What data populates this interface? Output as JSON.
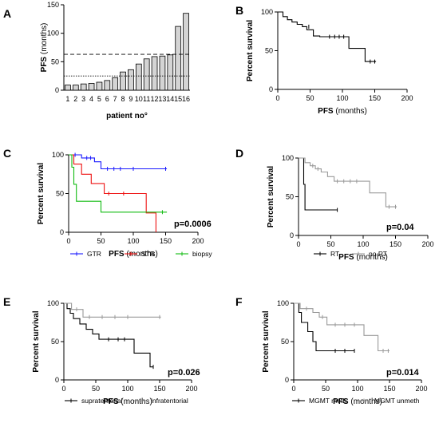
{
  "chart_data": [
    {
      "panel": "A",
      "type": "bar",
      "ylabel": "PFS",
      "ylabel_unit": "(months)",
      "xlabel": "patient no°",
      "ylim": [
        0,
        150
      ],
      "yticks": [
        0,
        50,
        100,
        150
      ],
      "categories": [
        "1",
        "2",
        "3",
        "4",
        "5",
        "6",
        "7",
        "8",
        "9",
        "10",
        "11",
        "12",
        "13",
        "14",
        "15",
        "16"
      ],
      "values": [
        9,
        9,
        11,
        12,
        14,
        17,
        22,
        32,
        36,
        46,
        55,
        59,
        60,
        62,
        112,
        135
      ],
      "reference_lines": [
        {
          "style": "dashed",
          "y": 63
        },
        {
          "style": "dotted",
          "y": 25
        }
      ],
      "bar_color": "#d4d4d4"
    },
    {
      "panel": "B",
      "type": "line",
      "xlabel_bold": "PFS",
      "xlabel_rest": "(months)",
      "ylabel": "Percent survival",
      "xlim": [
        0,
        200
      ],
      "ylim": [
        0,
        100
      ],
      "xticks": [
        0,
        50,
        100,
        150,
        200
      ],
      "yticks": [
        0,
        50,
        100
      ],
      "series": [
        {
          "color": "#000000",
          "steps": [
            [
              0,
              100
            ],
            [
              8,
              100
            ],
            [
              8,
              94
            ],
            [
              15,
              94
            ],
            [
              15,
              90
            ],
            [
              22,
              90
            ],
            [
              22,
              87
            ],
            [
              30,
              87
            ],
            [
              30,
              84
            ],
            [
              38,
              84
            ],
            [
              38,
              81
            ],
            [
              45,
              81
            ],
            [
              45,
              77
            ],
            [
              55,
              77
            ],
            [
              55,
              69
            ],
            [
              65,
              69
            ],
            [
              65,
              68
            ],
            [
              110,
              68
            ],
            [
              110,
              53
            ],
            [
              135,
              53
            ],
            [
              135,
              36
            ],
            [
              152,
              36
            ]
          ],
          "censors": [
            [
              48,
              81
            ],
            [
              80,
              68
            ],
            [
              88,
              68
            ],
            [
              95,
              68
            ],
            [
              102,
              68
            ],
            [
              143,
              36
            ],
            [
              150,
              36
            ]
          ]
        }
      ]
    },
    {
      "panel": "C",
      "type": "line",
      "xlabel_bold": "PFS",
      "xlabel_rest": "(months)",
      "ylabel": "Percent survival",
      "xlim": [
        0,
        200
      ],
      "ylim": [
        0,
        100
      ],
      "xticks": [
        0,
        50,
        100,
        150,
        200
      ],
      "yticks": [
        0,
        50,
        100
      ],
      "annotation": "p=0.0006",
      "series": [
        {
          "name": "GTR",
          "color": "#1a1aff",
          "steps": [
            [
              0,
              100
            ],
            [
              20,
              100
            ],
            [
              20,
              96
            ],
            [
              40,
              96
            ],
            [
              40,
              91
            ],
            [
              50,
              91
            ],
            [
              50,
              82
            ],
            [
              152,
              82
            ]
          ],
          "censors": [
            [
              10,
              100
            ],
            [
              28,
              96
            ],
            [
              34,
              96
            ],
            [
              60,
              82
            ],
            [
              70,
              82
            ],
            [
              80,
              82
            ],
            [
              100,
              82
            ],
            [
              150,
              82
            ]
          ]
        },
        {
          "name": "STR",
          "color": "#ee1111",
          "steps": [
            [
              0,
              100
            ],
            [
              8,
              100
            ],
            [
              8,
              88
            ],
            [
              20,
              88
            ],
            [
              20,
              75
            ],
            [
              35,
              75
            ],
            [
              35,
              63
            ],
            [
              55,
              63
            ],
            [
              55,
              50
            ],
            [
              120,
              50
            ],
            [
              120,
              25
            ],
            [
              135,
              25
            ],
            [
              135,
              0
            ]
          ],
          "censors": [
            [
              62,
              50
            ],
            [
              85,
              50
            ]
          ]
        },
        {
          "name": "biopsy",
          "color": "#11bb11",
          "steps": [
            [
              0,
              100
            ],
            [
              5,
              100
            ],
            [
              5,
              84
            ],
            [
              8,
              84
            ],
            [
              8,
              62
            ],
            [
              12,
              62
            ],
            [
              12,
              40
            ],
            [
              50,
              40
            ],
            [
              50,
              26
            ],
            [
              152,
              26
            ]
          ],
          "censors": [
            [
              145,
              26
            ]
          ]
        }
      ]
    },
    {
      "panel": "D",
      "type": "line",
      "xlabel_bold": "PFS",
      "xlabel_rest": "(months)",
      "ylabel": "Percent survival",
      "xlim": [
        0,
        200
      ],
      "ylim": [
        0,
        100
      ],
      "xticks": [
        0,
        50,
        100,
        150,
        200
      ],
      "yticks": [
        0,
        50,
        100
      ],
      "annotation": "p=0.04",
      "series": [
        {
          "name": "RT",
          "color": "#000000",
          "steps": [
            [
              0,
              100
            ],
            [
              8,
              100
            ],
            [
              8,
              66
            ],
            [
              10,
              66
            ],
            [
              10,
              33
            ],
            [
              60,
              33
            ]
          ],
          "censors": [
            [
              60,
              33
            ]
          ]
        },
        {
          "name": "no RT",
          "color": "#999999",
          "steps": [
            [
              0,
              100
            ],
            [
              10,
              100
            ],
            [
              10,
              94
            ],
            [
              18,
              94
            ],
            [
              18,
              90
            ],
            [
              26,
              90
            ],
            [
              26,
              86
            ],
            [
              35,
              86
            ],
            [
              35,
              82
            ],
            [
              45,
              82
            ],
            [
              45,
              76
            ],
            [
              55,
              76
            ],
            [
              55,
              70
            ],
            [
              110,
              70
            ],
            [
              110,
              55
            ],
            [
              135,
              55
            ],
            [
              135,
              37
            ],
            [
              152,
              37
            ]
          ],
          "censors": [
            [
              22,
              90
            ],
            [
              30,
              86
            ],
            [
              60,
              70
            ],
            [
              70,
              70
            ],
            [
              80,
              70
            ],
            [
              90,
              70
            ],
            [
              140,
              37
            ],
            [
              150,
              37
            ]
          ]
        }
      ]
    },
    {
      "panel": "E",
      "type": "line",
      "xlabel_bold": "PFS",
      "xlabel_rest": "(months)",
      "ylabel": "Percent survival",
      "xlim": [
        0,
        200
      ],
      "ylim": [
        0,
        100
      ],
      "xticks": [
        0,
        50,
        100,
        150,
        200
      ],
      "yticks": [
        0,
        50,
        100
      ],
      "annotation": "p=0.026",
      "series": [
        {
          "name": "supratentorial",
          "color": "#000000",
          "steps": [
            [
              0,
              100
            ],
            [
              5,
              100
            ],
            [
              5,
              93
            ],
            [
              10,
              93
            ],
            [
              10,
              87
            ],
            [
              15,
              87
            ],
            [
              15,
              80
            ],
            [
              25,
              80
            ],
            [
              25,
              73
            ],
            [
              35,
              73
            ],
            [
              35,
              66
            ],
            [
              45,
              66
            ],
            [
              45,
              60
            ],
            [
              55,
              60
            ],
            [
              55,
              53
            ],
            [
              110,
              53
            ],
            [
              110,
              35
            ],
            [
              135,
              35
            ],
            [
              135,
              17
            ],
            [
              140,
              17
            ]
          ],
          "censors": [
            [
              70,
              53
            ],
            [
              85,
              53
            ],
            [
              95,
              53
            ],
            [
              140,
              17
            ]
          ]
        },
        {
          "name": "infratentorial",
          "color": "#999999",
          "steps": [
            [
              0,
              100
            ],
            [
              12,
              100
            ],
            [
              12,
              92
            ],
            [
              30,
              92
            ],
            [
              30,
              82
            ],
            [
              152,
              82
            ]
          ],
          "censors": [
            [
              20,
              92
            ],
            [
              40,
              82
            ],
            [
              60,
              82
            ],
            [
              80,
              82
            ],
            [
              100,
              82
            ],
            [
              150,
              82
            ]
          ]
        }
      ]
    },
    {
      "panel": "F",
      "type": "line",
      "xlabel_bold": "PFS",
      "xlabel_rest": "(months)",
      "ylabel": "Percent survival",
      "xlim": [
        0,
        200
      ],
      "ylim": [
        0,
        100
      ],
      "xticks": [
        0,
        50,
        100,
        150,
        200
      ],
      "yticks": [
        0,
        50,
        100
      ],
      "annotation": "p=0.014",
      "series": [
        {
          "name": "MGMT meth",
          "color": "#000000",
          "steps": [
            [
              0,
              100
            ],
            [
              8,
              100
            ],
            [
              8,
              88
            ],
            [
              12,
              88
            ],
            [
              12,
              75
            ],
            [
              22,
              75
            ],
            [
              22,
              63
            ],
            [
              30,
              63
            ],
            [
              30,
              50
            ],
            [
              35,
              50
            ],
            [
              35,
              38
            ],
            [
              95,
              38
            ]
          ],
          "censors": [
            [
              65,
              38
            ],
            [
              80,
              38
            ],
            [
              95,
              38
            ]
          ]
        },
        {
          "name": "MGMT unmeth",
          "color": "#999999",
          "steps": [
            [
              0,
              100
            ],
            [
              10,
              100
            ],
            [
              10,
              93
            ],
            [
              30,
              93
            ],
            [
              30,
              88
            ],
            [
              40,
              88
            ],
            [
              40,
              82
            ],
            [
              52,
              82
            ],
            [
              52,
              72
            ],
            [
              110,
              72
            ],
            [
              110,
              58
            ],
            [
              132,
              58
            ],
            [
              132,
              38
            ],
            [
              150,
              38
            ]
          ],
          "censors": [
            [
              20,
              93
            ],
            [
              45,
              82
            ],
            [
              65,
              72
            ],
            [
              80,
              72
            ],
            [
              95,
              72
            ],
            [
              140,
              38
            ],
            [
              148,
              38
            ]
          ]
        }
      ]
    }
  ]
}
